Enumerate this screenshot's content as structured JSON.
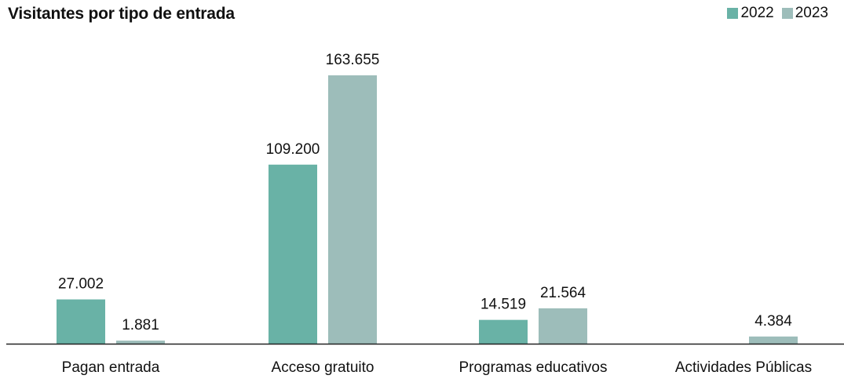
{
  "chart_data": {
    "type": "bar",
    "title": "Visitantes por tipo de entrada",
    "categories": [
      "Pagan entrada",
      "Acceso gratuito",
      "Programas educativos",
      "Actividades Públicas"
    ],
    "series": [
      {
        "name": "2022",
        "color": "#69b2a6",
        "values": [
          27002,
          109200,
          14519,
          null
        ],
        "labels": [
          "27.002",
          "109.200",
          "14.519",
          ""
        ]
      },
      {
        "name": "2023",
        "color": "#9dbdba",
        "values": [
          1881,
          163655,
          21564,
          4384
        ],
        "labels": [
          "1.881",
          "163.655",
          "21.564",
          "4.384"
        ]
      }
    ],
    "legend_position": "top-right",
    "grid": false,
    "ylim": [
      0,
      170000
    ]
  }
}
